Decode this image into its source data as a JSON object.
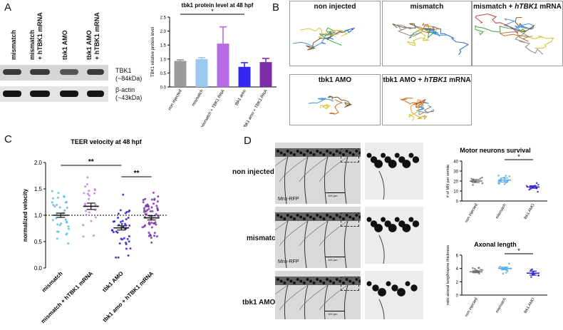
{
  "panelA": {
    "letter": "A",
    "blot_lanes": [
      "mismatch",
      "mismatch\n+ hTBK1 mRNA",
      "tbk1 AMO",
      "tbk1 AMO\n+ hTBK1 mRNA"
    ],
    "blot_rows": [
      {
        "name": "TBK1",
        "size": "(~84kDa)"
      },
      {
        "name": "β-actin",
        "size": "(~43kDa)"
      }
    ]
  },
  "chartA": {
    "type": "bar",
    "title": "tbk1 protein level at 48 hpf",
    "ylabel": "TBK1 relative protein level",
    "categories": [
      "non injected",
      "mismatch",
      "mismatch + TBK1 RNA",
      "tbk1 amo",
      "tbk1 amo + TBK1 RNA"
    ],
    "values": [
      0.93,
      1.0,
      1.55,
      0.72,
      0.89
    ],
    "errors": [
      0.04,
      0.05,
      0.6,
      0.15,
      0.13
    ],
    "colors": [
      "#9a9a9a",
      "#9ec9ee",
      "#b56be6",
      "#3527f2",
      "#7d2ca8"
    ],
    "ylim": [
      0,
      2.5
    ],
    "yticks": [
      "0.0",
      "0.5",
      "1.0",
      "1.5",
      "2.0",
      "2.5"
    ],
    "significance": "*"
  },
  "panelB": {
    "letter": "B",
    "boxes": [
      {
        "label": "non injected"
      },
      {
        "label": "mismatch"
      },
      {
        "label_plain": "mismatch + ",
        "label_italic": "hTBK1",
        "label_tail": " mRNA"
      },
      {
        "label": "tbk1 AMO"
      },
      {
        "label_plain": "tbk1 AMO + ",
        "label_italic": "hTBK1",
        "label_tail": " mRNA"
      }
    ],
    "track_colors": [
      "#e8a33b",
      "#2a63c9",
      "#3aa64a",
      "#7a5a2a",
      "#d9c230",
      "#4a90d9",
      "#c8702a",
      "#8a8a8a",
      "#c04040"
    ]
  },
  "chartC": {
    "letter": "C",
    "type": "scatter",
    "title": "TEER velocity at 48 hpf",
    "ylabel": "normalized velocity",
    "categories": [
      "mismatch",
      "mismatch + hTBK1 mRNA",
      "tbk1 AMO",
      "tbk1 amo + hTBK1 mRNA"
    ],
    "means": [
      1.0,
      1.17,
      0.76,
      0.95
    ],
    "sems": [
      0.04,
      0.06,
      0.04,
      0.04
    ],
    "colors": [
      "#62b6f0",
      "#c27bea",
      "#2a1fd4",
      "#7a2fa8"
    ],
    "ylim": [
      0.0,
      2.0
    ],
    "yticks": [
      "0.0",
      "0.5",
      "1.0",
      "1.5",
      "2.0"
    ],
    "reference_line": 1.0,
    "significance": [
      "**",
      "**"
    ]
  },
  "panelD": {
    "letter": "D",
    "row_labels": [
      "non injected",
      "mismatch",
      "tbk1 AMO"
    ],
    "marker_label": "Mnx-RFP",
    "scale_label": "100 μm"
  },
  "chartD1": {
    "type": "scatter",
    "title": "Motor neurons survival",
    "ylabel": "# of MN per somite",
    "categories": [
      "non injected",
      "mismatch",
      "tbk1 AMO"
    ],
    "means": [
      20,
      21,
      14
    ],
    "sems": [
      1.5,
      2.0,
      1.2
    ],
    "colors": [
      "#6c6c6c",
      "#4da9e8",
      "#2a1fd4"
    ],
    "ylim": [
      0,
      40
    ],
    "yticks": [
      "0",
      "10",
      "20",
      "30",
      "40"
    ],
    "significance": "*"
  },
  "chartD2": {
    "type": "scatter",
    "title": "Axonal length",
    "ylabel": "ratio axonal length/spine thickness",
    "categories": [
      "non injected",
      "mismatch",
      "tbk1 AMO"
    ],
    "means": [
      3.5,
      4.0,
      3.3
    ],
    "sems": [
      0.15,
      0.2,
      0.3
    ],
    "colors": [
      "#6c6c6c",
      "#4da9e8",
      "#2a1fd4"
    ],
    "ylim": [
      0,
      6
    ],
    "yticks": [
      "0",
      "2",
      "4",
      "6"
    ],
    "significance": "*"
  }
}
